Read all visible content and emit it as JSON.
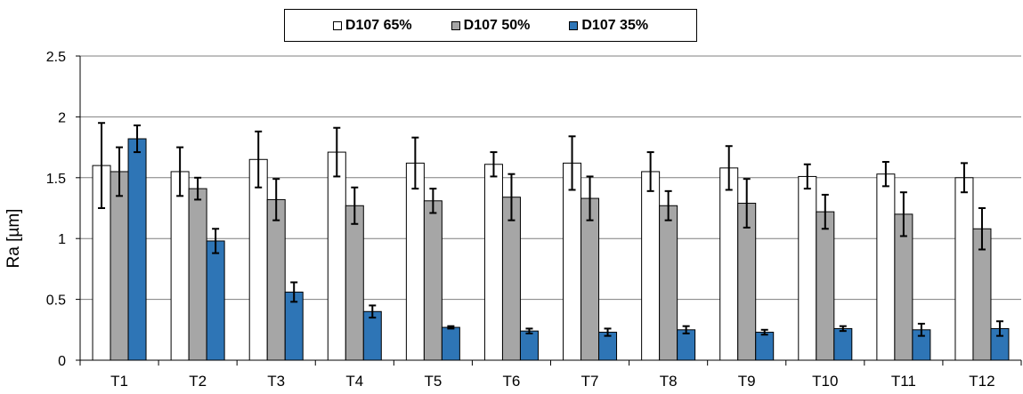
{
  "chart_data": {
    "type": "bar",
    "ylabel": "Ra [µm]",
    "xlabel": "",
    "ylim": [
      0,
      2.5
    ],
    "yticks": [
      "0",
      "0.5",
      "1",
      "1.5",
      "2",
      "2.5"
    ],
    "grid": true,
    "legend_position": "top-center",
    "categories": [
      "T1",
      "T2",
      "T3",
      "T4",
      "T5",
      "T6",
      "T7",
      "T8",
      "T9",
      "T10",
      "T11",
      "T12"
    ],
    "series": [
      {
        "name": "D107 65%",
        "color": "#ffffff",
        "values": [
          1.6,
          1.55,
          1.65,
          1.71,
          1.62,
          1.61,
          1.62,
          1.55,
          1.58,
          1.51,
          1.53,
          1.5
        ],
        "errors": [
          0.35,
          0.2,
          0.23,
          0.2,
          0.21,
          0.1,
          0.22,
          0.16,
          0.18,
          0.1,
          0.1,
          0.12
        ]
      },
      {
        "name": "D107 50%",
        "color": "#a6a6a6",
        "values": [
          1.55,
          1.41,
          1.32,
          1.27,
          1.31,
          1.34,
          1.33,
          1.27,
          1.29,
          1.22,
          1.2,
          1.08
        ],
        "errors": [
          0.2,
          0.09,
          0.17,
          0.15,
          0.1,
          0.19,
          0.18,
          0.12,
          0.2,
          0.14,
          0.18,
          0.17
        ]
      },
      {
        "name": "D107 35%",
        "color": "#2e75b6",
        "values": [
          1.82,
          0.98,
          0.56,
          0.4,
          0.27,
          0.24,
          0.23,
          0.25,
          0.23,
          0.26,
          0.25,
          0.26
        ],
        "errors": [
          0.11,
          0.1,
          0.08,
          0.05,
          0.01,
          0.02,
          0.03,
          0.03,
          0.02,
          0.02,
          0.05,
          0.06
        ]
      }
    ]
  }
}
